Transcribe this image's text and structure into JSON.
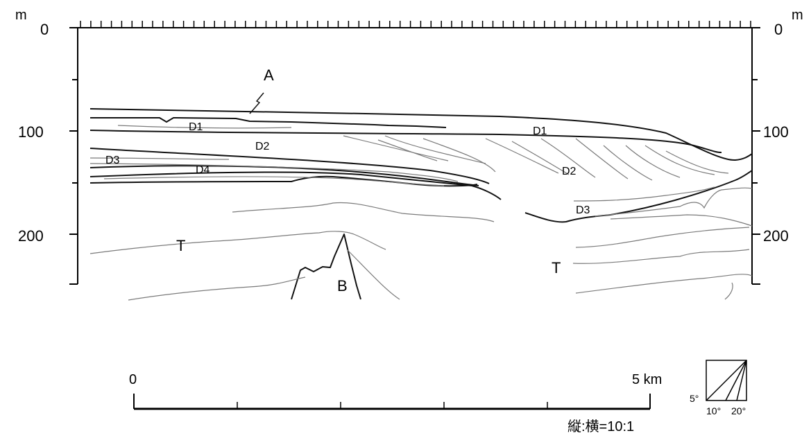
{
  "depth_axis": {
    "unit": "m",
    "ticks": [
      "0",
      "100",
      "200"
    ]
  },
  "labels": {
    "A": "A",
    "B": "B",
    "T_left": "T",
    "T_right": "T",
    "D1_left": "D1",
    "D1_right": "D1",
    "D2_left": "D2",
    "D2_right": "D2",
    "D3_left": "D3",
    "D3_right": "D3",
    "D4": "D4"
  },
  "scale_bar": {
    "start": "0",
    "end": "5 km"
  },
  "exaggeration": "縦:横=10:1",
  "dip_angles": [
    "5°",
    "10°",
    "20°"
  ]
}
